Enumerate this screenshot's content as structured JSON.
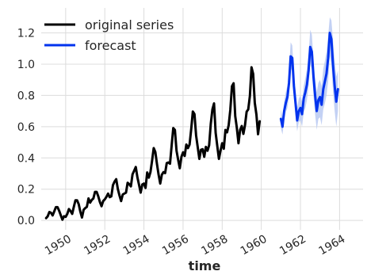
{
  "chart_data": {
    "type": "line",
    "xlabel": "time",
    "ylabel": "",
    "xlim": [
      1948.75,
      1965.2
    ],
    "ylim": [
      -0.06,
      1.36
    ],
    "xticks": [
      1950,
      1952,
      1954,
      1956,
      1958,
      1960,
      1962,
      1964
    ],
    "xtick_labels": [
      "1950",
      "1952",
      "1954",
      "1956",
      "1958",
      "1960",
      "1962",
      "1964"
    ],
    "yticks": [
      0.0,
      0.2,
      0.4,
      0.6,
      0.8,
      1.0,
      1.2
    ],
    "ytick_labels": [
      "0.0",
      "0.2",
      "0.4",
      "0.6",
      "0.8",
      "1.0",
      "1.2"
    ],
    "grid": true,
    "legend_position": "top-left",
    "series": [
      {
        "name": "original series",
        "color": "#000000",
        "start_year": 1949.0,
        "step": 0.0833333,
        "values": [
          0.015,
          0.027,
          0.054,
          0.049,
          0.032,
          0.058,
          0.085,
          0.085,
          0.062,
          0.033,
          0.005,
          0.027,
          0.023,
          0.042,
          0.073,
          0.06,
          0.042,
          0.087,
          0.129,
          0.129,
          0.104,
          0.056,
          0.019,
          0.068,
          0.079,
          0.087,
          0.141,
          0.114,
          0.131,
          0.141,
          0.183,
          0.183,
          0.154,
          0.118,
          0.091,
          0.124,
          0.135,
          0.151,
          0.172,
          0.149,
          0.154,
          0.226,
          0.249,
          0.264,
          0.201,
          0.16,
          0.124,
          0.166,
          0.172,
          0.178,
          0.241,
          0.232,
          0.218,
          0.295,
          0.318,
          0.342,
          0.276,
          0.228,
          0.178,
          0.23,
          0.236,
          0.208,
          0.307,
          0.274,
          0.309,
          0.382,
          0.463,
          0.438,
          0.361,
          0.293,
          0.236,
          0.293,
          0.309,
          0.303,
          0.367,
          0.371,
          0.363,
          0.479,
          0.591,
          0.579,
          0.446,
          0.388,
          0.334,
          0.407,
          0.436,
          0.413,
          0.486,
          0.463,
          0.486,
          0.584,
          0.697,
          0.681,
          0.544,
          0.469,
          0.394,
          0.452,
          0.456,
          0.407,
          0.471,
          0.446,
          0.481,
          0.618,
          0.71,
          0.749,
          0.56,
          0.476,
          0.394,
          0.447,
          0.494,
          0.459,
          0.579,
          0.564,
          0.61,
          0.709,
          0.859,
          0.878,
          0.668,
          0.592,
          0.494,
          0.579,
          0.604,
          0.554,
          0.61,
          0.696,
          0.711,
          0.797,
          0.98,
          0.938,
          0.752,
          0.678,
          0.552,
          0.635
        ]
      },
      {
        "name": "forecast",
        "color": "#0033ee",
        "band_color": "#b9c9f2",
        "start_year": 1961.0,
        "step": 0.0833333,
        "values": [
          0.65,
          0.6,
          0.7,
          0.75,
          0.79,
          0.88,
          1.05,
          1.04,
          0.86,
          0.75,
          0.64,
          0.7,
          0.72,
          0.68,
          0.78,
          0.82,
          0.87,
          0.96,
          1.11,
          1.08,
          0.92,
          0.8,
          0.7,
          0.77,
          0.79,
          0.74,
          0.84,
          0.89,
          0.94,
          1.04,
          1.2,
          1.16,
          0.99,
          0.86,
          0.76,
          0.84
        ],
        "lower": [
          0.59,
          0.55,
          0.64,
          0.69,
          0.72,
          0.8,
          0.97,
          0.96,
          0.78,
          0.67,
          0.57,
          0.63,
          0.64,
          0.6,
          0.69,
          0.72,
          0.77,
          0.86,
          1.0,
          0.97,
          0.8,
          0.68,
          0.58,
          0.65,
          0.66,
          0.61,
          0.71,
          0.75,
          0.8,
          0.89,
          1.05,
          1.0,
          0.82,
          0.7,
          0.6,
          0.7
        ],
        "upper": [
          0.71,
          0.66,
          0.76,
          0.82,
          0.86,
          0.96,
          1.14,
          1.12,
          0.94,
          0.83,
          0.72,
          0.78,
          0.8,
          0.76,
          0.86,
          0.91,
          0.97,
          1.06,
          1.22,
          1.19,
          1.03,
          0.91,
          0.82,
          0.88,
          0.9,
          0.86,
          0.97,
          1.02,
          1.08,
          1.18,
          1.3,
          1.28,
          1.15,
          1.02,
          0.92,
          0.96
        ]
      }
    ]
  }
}
